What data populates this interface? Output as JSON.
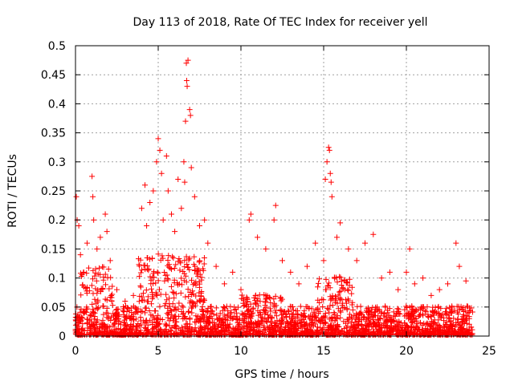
{
  "chart_data": {
    "type": "scatter",
    "title": "Day 113 of 2018, Rate Of TEC Index for receiver yell",
    "xlabel": "GPS time / hours",
    "ylabel": "ROTI / TECUs",
    "xlim": [
      0,
      25
    ],
    "ylim": [
      0,
      0.5
    ],
    "xticks": [
      0,
      5,
      10,
      15,
      20,
      25
    ],
    "xtick_labels": [
      "0",
      "5",
      "10",
      "15",
      "20",
      "25"
    ],
    "yticks": [
      0,
      0.05,
      0.1,
      0.15,
      0.2,
      0.25,
      0.3,
      0.35,
      0.4,
      0.45,
      0.5
    ],
    "ytick_labels": [
      "0",
      "0.05",
      "0.1",
      "0.15",
      "0.2",
      "0.25",
      "0.3",
      "0.35",
      "0.4",
      "0.45",
      "0.5"
    ],
    "grid": true,
    "marker": "+",
    "color": "#ff0000",
    "series": [
      {
        "name": "ROTI",
        "points": [
          [
            0.05,
            0.24
          ],
          [
            0.1,
            0.2
          ],
          [
            0.2,
            0.19
          ],
          [
            0.3,
            0.14
          ],
          [
            0.5,
            0.11
          ],
          [
            0.7,
            0.16
          ],
          [
            1.0,
            0.275
          ],
          [
            1.05,
            0.24
          ],
          [
            1.1,
            0.2
          ],
          [
            1.3,
            0.15
          ],
          [
            1.5,
            0.17
          ],
          [
            1.8,
            0.21
          ],
          [
            1.9,
            0.18
          ],
          [
            2.1,
            0.13
          ],
          [
            2.5,
            0.08
          ],
          [
            3.0,
            0.06
          ],
          [
            3.5,
            0.07
          ],
          [
            4.0,
            0.22
          ],
          [
            4.2,
            0.26
          ],
          [
            4.3,
            0.19
          ],
          [
            4.5,
            0.23
          ],
          [
            4.7,
            0.25
          ],
          [
            4.9,
            0.3
          ],
          [
            5.0,
            0.34
          ],
          [
            5.1,
            0.32
          ],
          [
            5.2,
            0.28
          ],
          [
            5.3,
            0.2
          ],
          [
            5.5,
            0.31
          ],
          [
            5.6,
            0.25
          ],
          [
            5.8,
            0.21
          ],
          [
            6.0,
            0.18
          ],
          [
            6.2,
            0.27
          ],
          [
            6.4,
            0.22
          ],
          [
            6.55,
            0.3
          ],
          [
            6.6,
            0.265
          ],
          [
            6.65,
            0.37
          ],
          [
            6.7,
            0.47
          ],
          [
            6.72,
            0.44
          ],
          [
            6.75,
            0.43
          ],
          [
            6.8,
            0.475
          ],
          [
            6.9,
            0.39
          ],
          [
            6.95,
            0.38
          ],
          [
            7.0,
            0.29
          ],
          [
            7.2,
            0.24
          ],
          [
            7.5,
            0.19
          ],
          [
            7.8,
            0.2
          ],
          [
            8.0,
            0.16
          ],
          [
            8.5,
            0.12
          ],
          [
            9.0,
            0.09
          ],
          [
            9.5,
            0.11
          ],
          [
            10.0,
            0.08
          ],
          [
            10.5,
            0.2
          ],
          [
            10.6,
            0.21
          ],
          [
            11.0,
            0.17
          ],
          [
            11.5,
            0.15
          ],
          [
            12.0,
            0.2
          ],
          [
            12.1,
            0.225
          ],
          [
            12.5,
            0.13
          ],
          [
            13.0,
            0.11
          ],
          [
            13.5,
            0.09
          ],
          [
            14.0,
            0.12
          ],
          [
            14.5,
            0.16
          ],
          [
            15.0,
            0.13
          ],
          [
            15.1,
            0.27
          ],
          [
            15.2,
            0.3
          ],
          [
            15.3,
            0.325
          ],
          [
            15.35,
            0.32
          ],
          [
            15.4,
            0.28
          ],
          [
            15.45,
            0.265
          ],
          [
            15.5,
            0.24
          ],
          [
            15.8,
            0.17
          ],
          [
            16.0,
            0.195
          ],
          [
            16.5,
            0.15
          ],
          [
            17.0,
            0.13
          ],
          [
            17.5,
            0.16
          ],
          [
            18.0,
            0.175
          ],
          [
            18.5,
            0.1
          ],
          [
            19.0,
            0.11
          ],
          [
            19.5,
            0.08
          ],
          [
            20.0,
            0.11
          ],
          [
            20.2,
            0.15
          ],
          [
            20.5,
            0.09
          ],
          [
            21.0,
            0.1
          ],
          [
            21.5,
            0.07
          ],
          [
            22.0,
            0.08
          ],
          [
            22.5,
            0.09
          ],
          [
            23.0,
            0.16
          ],
          [
            23.2,
            0.12
          ],
          [
            23.6,
            0.095
          ],
          [
            23.8,
            0.03
          ]
        ]
      }
    ]
  }
}
